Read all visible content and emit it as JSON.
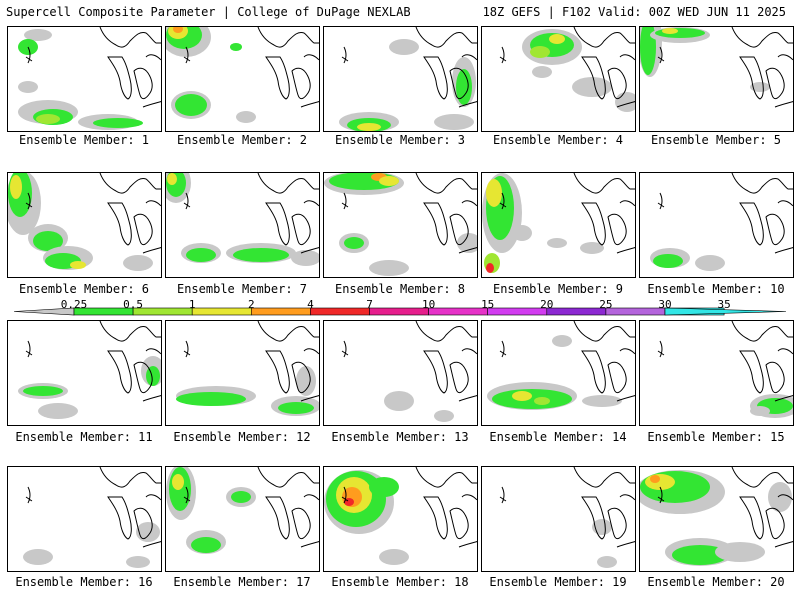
{
  "header": {
    "left_title": "Supercell Composite Parameter | College of DuPage NEXLAB",
    "right_title": "18Z GEFS | F102 Valid: 00Z WED JUN 11 2025"
  },
  "colorbar": {
    "thresholds": [
      "0.25",
      "0.5",
      "1",
      "2",
      "4",
      "7",
      "10",
      "15",
      "20",
      "25",
      "30",
      "35"
    ],
    "colors": [
      "#c8c8c8",
      "#33e533",
      "#a0e632",
      "#e6e632",
      "#ff9c1e",
      "#f02828",
      "#e61e8c",
      "#e632c8",
      "#d23cf0",
      "#8c28d2",
      "#b464dc",
      "#32e6e6"
    ]
  },
  "members": [
    "Ensemble Member: 1",
    "Ensemble Member: 2",
    "Ensemble Member: 3",
    "Ensemble Member: 4",
    "Ensemble Member: 5",
    "Ensemble Member: 6",
    "Ensemble Member: 7",
    "Ensemble Member: 8",
    "Ensemble Member: 9",
    "Ensemble Member: 10",
    "Ensemble Member: 11",
    "Ensemble Member: 12",
    "Ensemble Member: 13",
    "Ensemble Member: 14",
    "Ensemble Member: 15",
    "Ensemble Member: 16",
    "Ensemble Member: 17",
    "Ensemble Member: 18",
    "Ensemble Member: 19",
    "Ensemble Member: 20"
  ]
}
